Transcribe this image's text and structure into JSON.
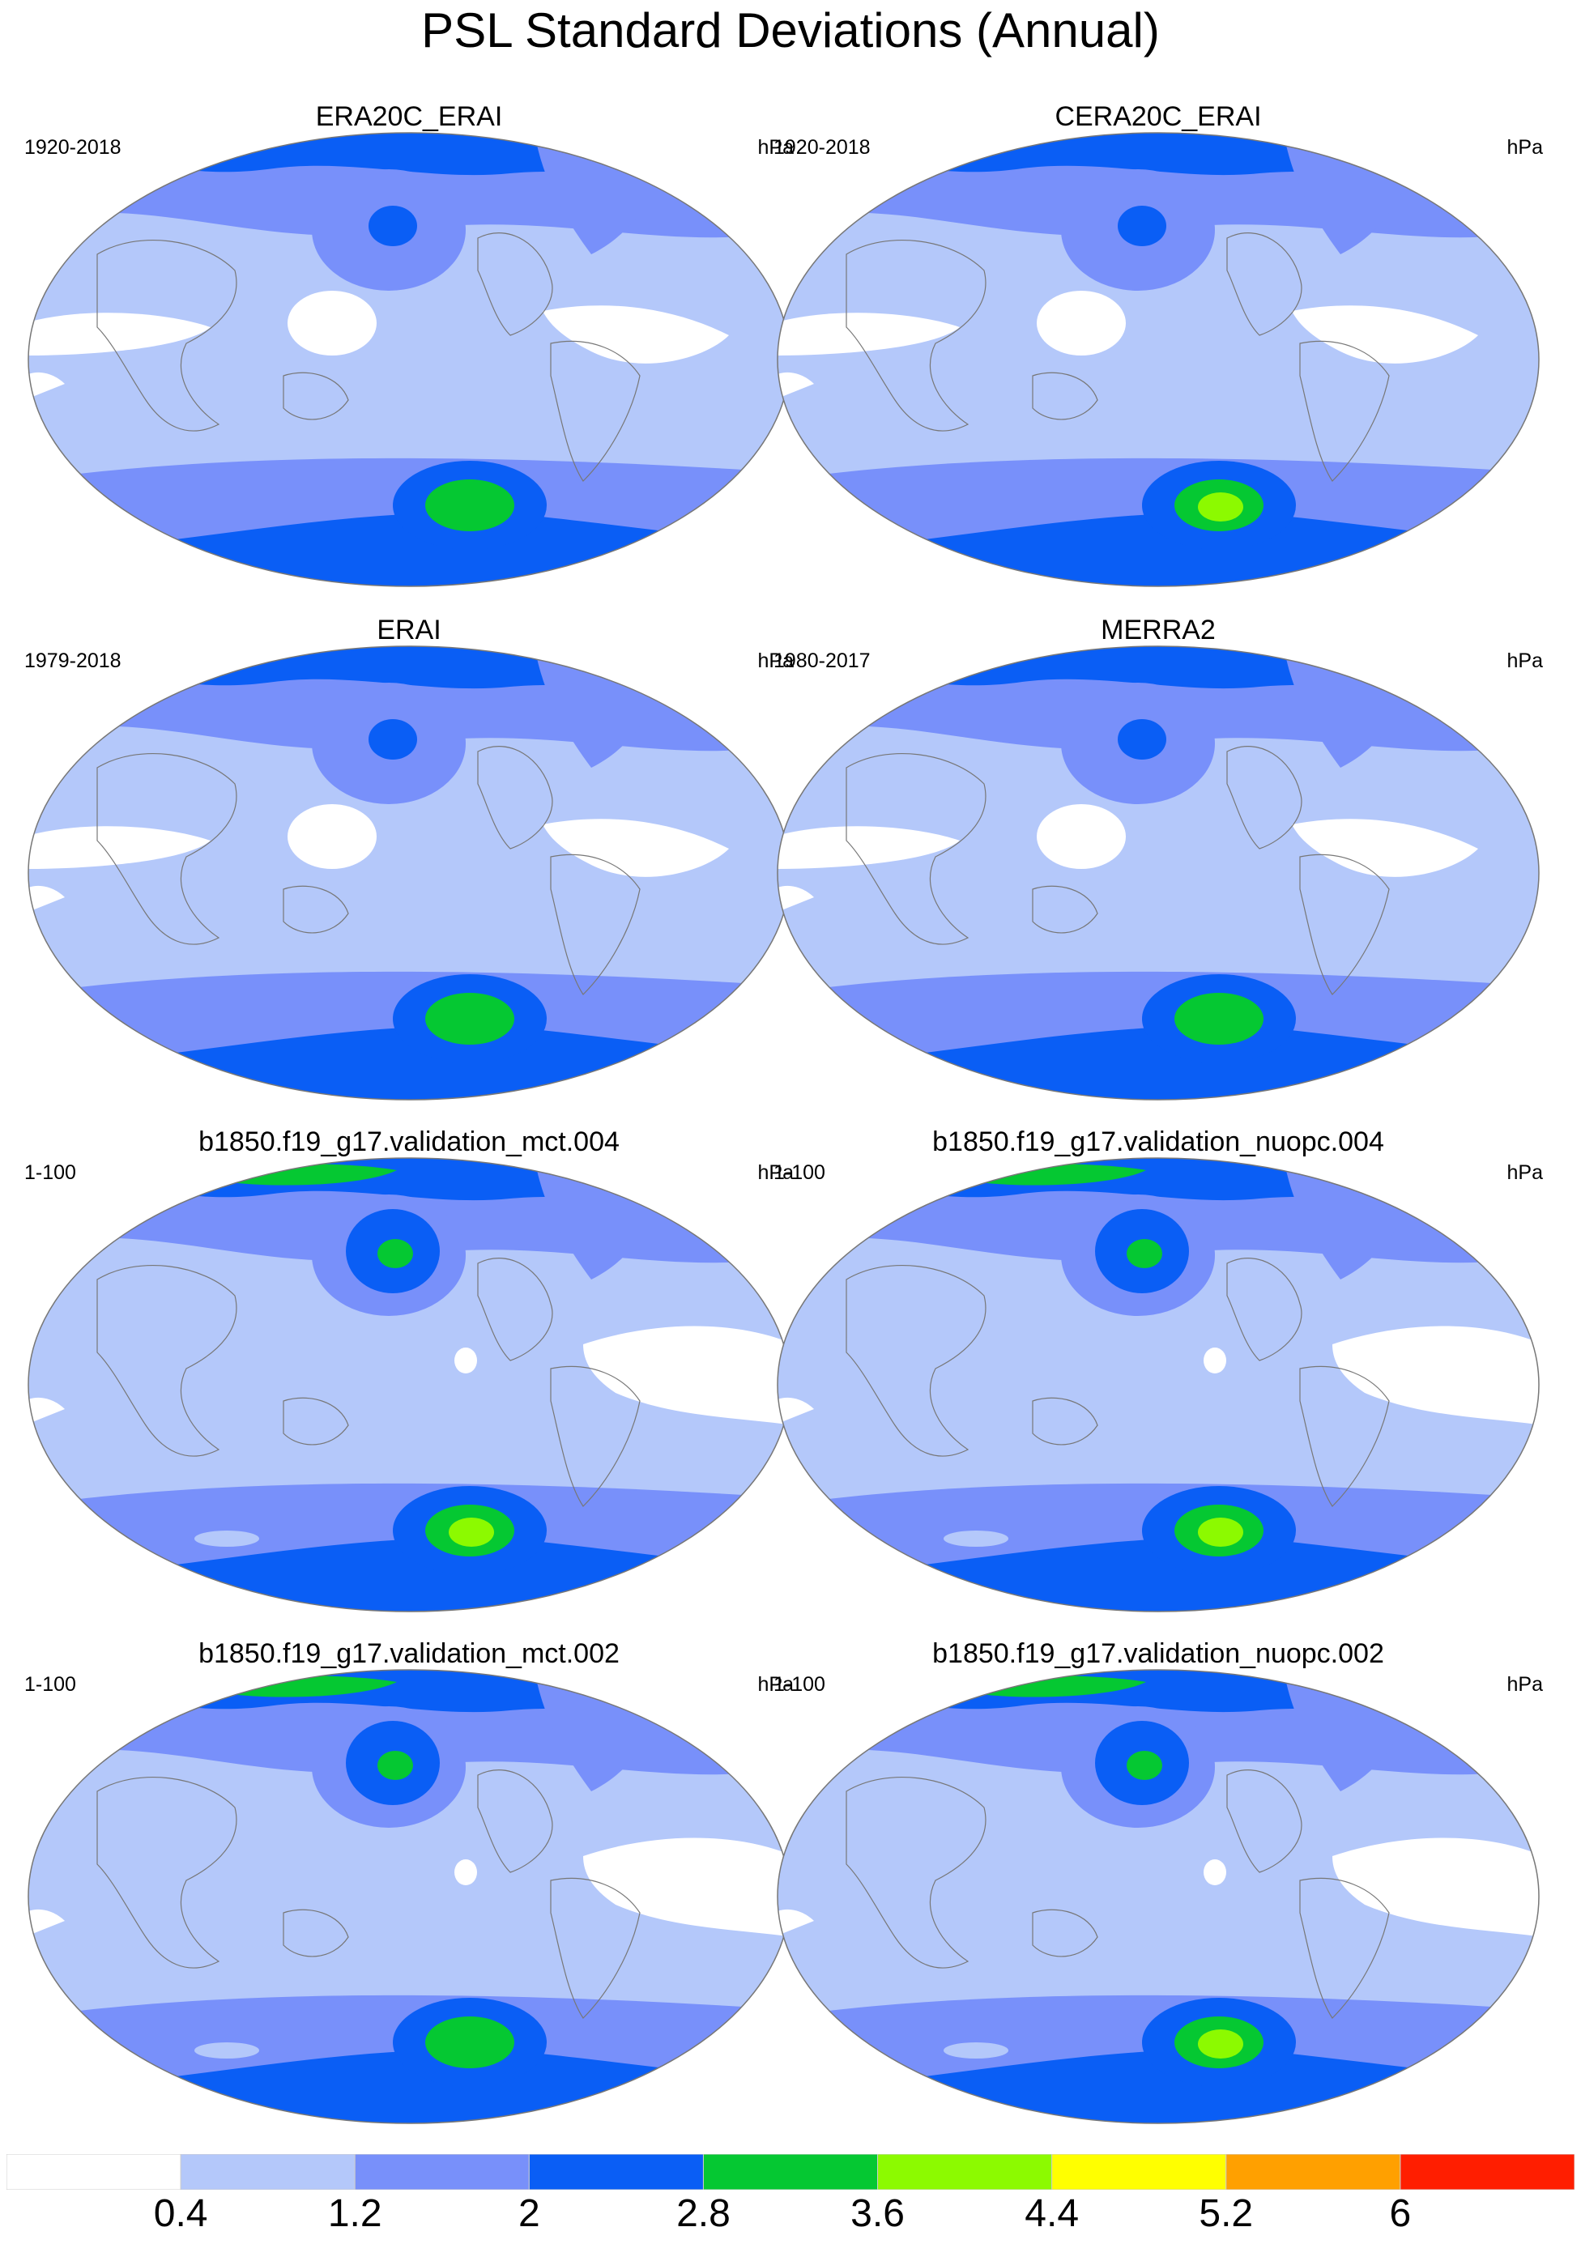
{
  "title": "PSL Standard Deviations (Annual)",
  "colorbar": {
    "colors": [
      "#ffffff",
      "#b4c8fa",
      "#7890fa",
      "#0a5ef5",
      "#05c832",
      "#8cfa00",
      "#ffff00",
      "#ffa000",
      "#ff1e00"
    ],
    "labels": [
      "0.4",
      "1.2",
      "2",
      "2.8",
      "3.6",
      "4.4",
      "5.2",
      "6"
    ]
  },
  "panels": [
    {
      "title": "ERA20C_ERAI",
      "left_label": "1920-2018",
      "right_label": "hPa"
    },
    {
      "title": "CERA20C_ERAI",
      "left_label": "1920-2018",
      "right_label": "hPa"
    },
    {
      "title": "ERAI",
      "left_label": "1979-2018",
      "right_label": "hPa"
    },
    {
      "title": "MERRA2",
      "left_label": "1980-2017",
      "right_label": "hPa"
    },
    {
      "title": "b1850.f19_g17.validation_mct.004",
      "left_label": "1-100",
      "right_label": "hPa"
    },
    {
      "title": "b1850.f19_g17.validation_nuopc.004",
      "left_label": "1-100",
      "right_label": "hPa"
    },
    {
      "title": "b1850.f19_g17.validation_mct.002",
      "left_label": "1-100",
      "right_label": "hPa"
    },
    {
      "title": "b1850.f19_g17.validation_nuopc.002",
      "left_label": "1-100",
      "right_label": "hPa"
    }
  ]
}
